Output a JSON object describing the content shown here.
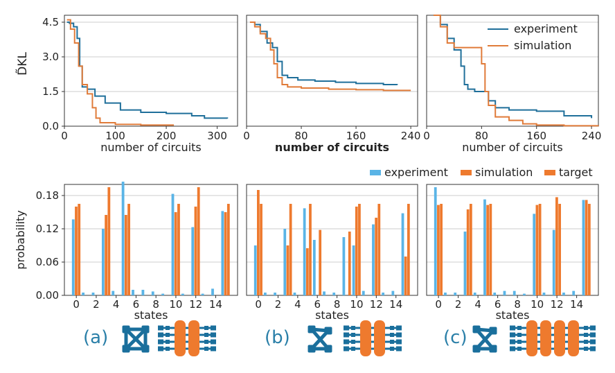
{
  "colors": {
    "experiment_line": "#1f6f9a",
    "simulation_line": "#e07b39",
    "experiment_bar": "#5ab4e6",
    "simulation_bar": "#ee7a2e",
    "target_bar": "#ee7a2e",
    "icon_blue": "#1a6f9c",
    "icon_orange": "#ee7a2e",
    "grid": "#cccccc"
  },
  "panel_labels": [
    "(a)",
    "(b)",
    "(c)"
  ],
  "top_legend": {
    "experiment": "experiment",
    "simulation": "simulation"
  },
  "bottom_legend": {
    "experiment": "experiment",
    "simulation": "simulation",
    "target": "target"
  },
  "chart_data": [
    {
      "type": "line",
      "panel": "(a) top",
      "xlabel": "number of circuits",
      "ylabel": "D̃KL",
      "xlim": [
        0,
        340
      ],
      "ylim": [
        0,
        4.8
      ],
      "xticks": [
        0,
        100,
        200,
        300
      ],
      "xtick_labels": [
        "0",
        "100",
        "200",
        "300"
      ],
      "yticks": [
        0,
        1.5,
        3.0,
        4.5
      ],
      "ytick_labels": [
        "0.0",
        "1.5",
        "3.0",
        "4.5"
      ],
      "grid": "horizontal",
      "series": [
        {
          "name": "experiment",
          "x": [
            5,
            10,
            18,
            25,
            30,
            35,
            45,
            60,
            80,
            110,
            150,
            200,
            250,
            275,
            320
          ],
          "y": [
            4.5,
            4.45,
            4.3,
            3.8,
            2.6,
            1.7,
            1.6,
            1.3,
            1.0,
            0.7,
            0.6,
            0.55,
            0.45,
            0.35,
            0.33
          ]
        },
        {
          "name": "simulation",
          "x": [
            5,
            12,
            20,
            28,
            35,
            45,
            55,
            62,
            70,
            100,
            150,
            200,
            215
          ],
          "y": [
            4.6,
            4.2,
            3.6,
            2.6,
            1.8,
            1.4,
            0.8,
            0.35,
            0.15,
            0.08,
            0.05,
            0.05,
            0.05
          ]
        }
      ]
    },
    {
      "type": "line",
      "panel": "(b) top",
      "xlabel": "number of circuits",
      "ylabel": "",
      "xlim": [
        0,
        250
      ],
      "ylim": [
        0,
        4.8
      ],
      "xticks": [
        0,
        80,
        160,
        240
      ],
      "xtick_labels": [
        "0",
        "80",
        "160",
        "240"
      ],
      "grid": "horizontal",
      "legend": "none",
      "series": [
        {
          "name": "experiment",
          "x": [
            5,
            12,
            20,
            30,
            38,
            45,
            52,
            60,
            75,
            100,
            130,
            160,
            200,
            220
          ],
          "y": [
            4.5,
            4.4,
            4.1,
            3.6,
            3.4,
            2.8,
            2.2,
            2.1,
            2.0,
            1.95,
            1.9,
            1.85,
            1.8,
            1.78
          ]
        },
        {
          "name": "simulation",
          "x": [
            5,
            12,
            20,
            28,
            35,
            40,
            45,
            52,
            60,
            80,
            120,
            160,
            200,
            240
          ],
          "y": [
            4.5,
            4.3,
            4.0,
            3.8,
            3.3,
            2.7,
            2.1,
            1.8,
            1.7,
            1.65,
            1.6,
            1.58,
            1.55,
            1.55
          ]
        }
      ]
    },
    {
      "type": "line",
      "panel": "(c) top",
      "xlabel": "number of circuits",
      "ylabel": "",
      "xlim": [
        0,
        250
      ],
      "ylim": [
        0,
        4.8
      ],
      "xticks": [
        0,
        80,
        160,
        240
      ],
      "xtick_labels": [
        "0",
        "80",
        "160",
        "240"
      ],
      "grid": "horizontal",
      "legend": "top-right",
      "series": [
        {
          "name": "experiment",
          "x": [
            10,
            20,
            30,
            40,
            50,
            55,
            60,
            70,
            80,
            90,
            100,
            120,
            160,
            200,
            240
          ],
          "y": [
            4.8,
            4.4,
            3.8,
            3.3,
            2.6,
            1.8,
            1.6,
            1.5,
            1.5,
            1.1,
            0.8,
            0.7,
            0.65,
            0.45,
            0.35
          ]
        },
        {
          "name": "simulation",
          "x": [
            10,
            20,
            30,
            40,
            50,
            70,
            80,
            85,
            90,
            100,
            120,
            140,
            160,
            200,
            250
          ],
          "y": [
            4.8,
            4.3,
            3.6,
            3.4,
            3.4,
            3.4,
            2.7,
            1.5,
            0.9,
            0.4,
            0.25,
            0.1,
            0.05,
            0.02,
            0.01
          ]
        }
      ]
    },
    {
      "type": "bar",
      "panel": "(a) bottom",
      "xlabel": "states",
      "ylabel": "probability",
      "ylim": [
        0,
        0.2
      ],
      "yticks": [
        0,
        0.06,
        0.12,
        0.18
      ],
      "ytick_labels": [
        "0.00",
        "0.06",
        "0.12",
        "0.18"
      ],
      "categories": [
        0,
        1,
        2,
        3,
        4,
        5,
        6,
        7,
        8,
        9,
        10,
        11,
        12,
        13,
        14,
        15
      ],
      "xtick_labels": [
        "0",
        "2",
        "4",
        "6",
        "8",
        "10",
        "12",
        "14"
      ],
      "grid": "horizontal",
      "series": [
        {
          "name": "experiment",
          "values": [
            0.137,
            0.005,
            0.005,
            0.12,
            0.008,
            0.205,
            0.01,
            0.01,
            0.007,
            0.003,
            0.183,
            0.003,
            0.123,
            0.003,
            0.012,
            0.152
          ]
        },
        {
          "name": "simulation",
          "values": [
            0.16,
            0.0,
            0.0,
            0.145,
            0.0,
            0.145,
            0.0,
            0.0,
            0.0,
            0.0,
            0.15,
            0.0,
            0.16,
            0.0,
            0.0,
            0.15
          ]
        },
        {
          "name": "target",
          "values": [
            0.165,
            0.0,
            0.0,
            0.195,
            0.0,
            0.165,
            0.0,
            0.0,
            0.0,
            0.0,
            0.165,
            0.0,
            0.195,
            0.0,
            0.0,
            0.165
          ]
        }
      ]
    },
    {
      "type": "bar",
      "panel": "(b) bottom",
      "xlabel": "states",
      "ylabel": "",
      "ylim": [
        0,
        0.2
      ],
      "categories": [
        0,
        1,
        2,
        3,
        4,
        5,
        6,
        7,
        8,
        9,
        10,
        11,
        12,
        13,
        14,
        15
      ],
      "xtick_labels": [
        "0",
        "2",
        "4",
        "6",
        "8",
        "10",
        "12",
        "14"
      ],
      "grid": "horizontal",
      "series": [
        {
          "name": "experiment",
          "values": [
            0.09,
            0.005,
            0.005,
            0.12,
            0.005,
            0.157,
            0.1,
            0.007,
            0.005,
            0.105,
            0.09,
            0.008,
            0.128,
            0.005,
            0.008,
            0.148
          ]
        },
        {
          "name": "simulation",
          "values": [
            0.19,
            0.0,
            0.0,
            0.09,
            0.0,
            0.085,
            0.0,
            0.0,
            0.0,
            0.0,
            0.16,
            0.0,
            0.14,
            0.0,
            0.0,
            0.07
          ]
        },
        {
          "name": "target",
          "values": [
            0.165,
            0.0,
            0.0,
            0.165,
            0.0,
            0.165,
            0.118,
            0.0,
            0.0,
            0.115,
            0.165,
            0.0,
            0.165,
            0.0,
            0.0,
            0.165
          ]
        }
      ]
    },
    {
      "type": "bar",
      "panel": "(c) bottom",
      "xlabel": "states",
      "ylabel": "",
      "ylim": [
        0,
        0.2
      ],
      "categories": [
        0,
        1,
        2,
        3,
        4,
        5,
        6,
        7,
        8,
        9,
        10,
        11,
        12,
        13,
        14,
        15
      ],
      "xtick_labels": [
        "0",
        "2",
        "4",
        "6",
        "8",
        "10",
        "12",
        "14"
      ],
      "grid": "horizontal",
      "series": [
        {
          "name": "experiment",
          "values": [
            0.195,
            0.005,
            0.005,
            0.115,
            0.005,
            0.173,
            0.005,
            0.008,
            0.008,
            0.003,
            0.147,
            0.005,
            0.118,
            0.005,
            0.008,
            0.172
          ]
        },
        {
          "name": "simulation",
          "values": [
            0.163,
            0.0,
            0.0,
            0.155,
            0.0,
            0.163,
            0.0,
            0.0,
            0.0,
            0.0,
            0.163,
            0.0,
            0.177,
            0.0,
            0.0,
            0.172
          ]
        },
        {
          "name": "target",
          "values": [
            0.165,
            0.0,
            0.0,
            0.165,
            0.0,
            0.165,
            0.0,
            0.0,
            0.0,
            0.0,
            0.165,
            0.0,
            0.165,
            0.0,
            0.0,
            0.165
          ]
        }
      ]
    }
  ]
}
